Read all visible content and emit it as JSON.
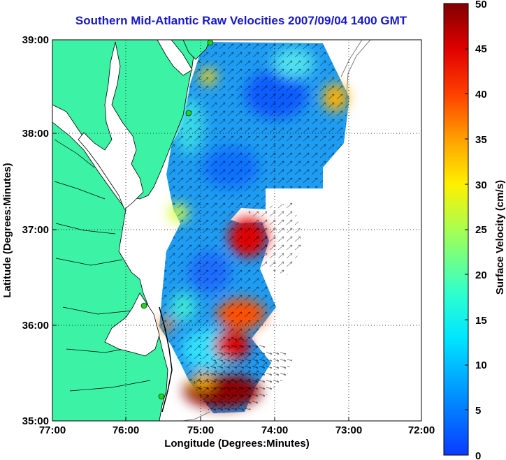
{
  "title": "Southern Mid-Atlantic Raw Velocities 2007/09/04 1400 GMT",
  "map": {
    "x_ticks": [
      "77:00",
      "76:00",
      "75:00",
      "74:00",
      "73:00",
      "72:00"
    ],
    "y_ticks": [
      "39:00",
      "38:00",
      "37:00",
      "36:00",
      "35:00"
    ],
    "xlabel": "Longitude (Degrees:Minutes)",
    "ylabel": "Latitude (Degrees:Minutes)",
    "lon_range": [
      -77,
      -72
    ],
    "lat_range": [
      35,
      39
    ],
    "colors": {
      "land": "#3cf2a4",
      "water": "#ffffff",
      "title": "#1818c8",
      "station": "#1fd41f"
    }
  },
  "colorbar": {
    "label": "Surface Velocity (cm/s)",
    "ticks": [
      "0",
      "5",
      "10",
      "15",
      "20",
      "25",
      "30",
      "35",
      "40",
      "45",
      "50"
    ],
    "range": [
      0,
      50
    ]
  }
}
